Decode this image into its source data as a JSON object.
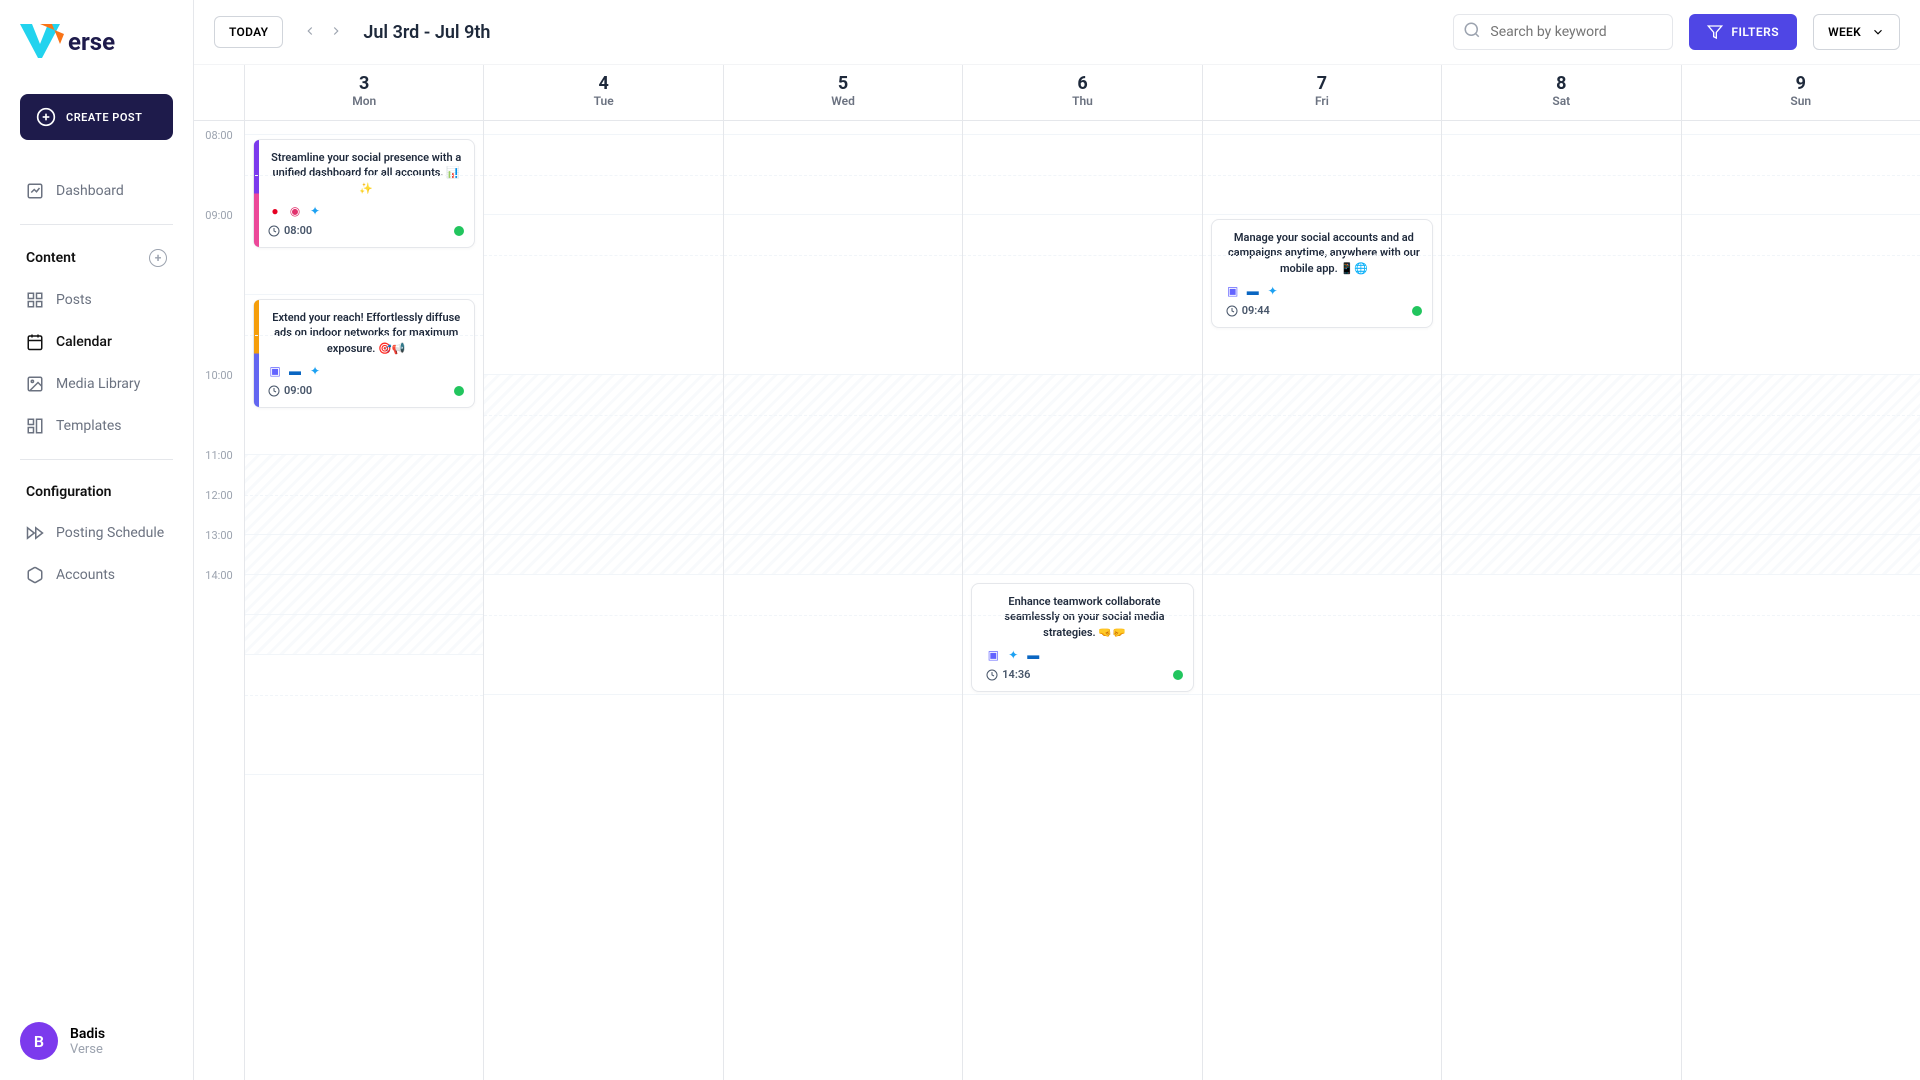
{
  "brand": "Verse",
  "create_label": "CREATE POST",
  "sidebar": {
    "dashboard": "Dashboard",
    "content_header": "Content",
    "posts": "Posts",
    "calendar": "Calendar",
    "media": "Media Library",
    "templates": "Templates",
    "config_header": "Configuration",
    "schedule": "Posting Schedule",
    "accounts": "Accounts"
  },
  "user": {
    "initial": "B",
    "name": "Badis",
    "org": "Verse"
  },
  "topbar": {
    "today": "TODAY",
    "range": "Jul 3rd - Jul 9th",
    "search_placeholder": "Search by keyword",
    "filters": "FILTERS",
    "view": "WEEK"
  },
  "days": [
    {
      "num": "3",
      "name": "Mon"
    },
    {
      "num": "4",
      "name": "Tue"
    },
    {
      "num": "5",
      "name": "Wed"
    },
    {
      "num": "6",
      "name": "Thu"
    },
    {
      "num": "7",
      "name": "Fri"
    },
    {
      "num": "8",
      "name": "Sat"
    },
    {
      "num": "9",
      "name": "Sun"
    }
  ],
  "hours": [
    "08:00",
    "09:00",
    "10:00",
    "11:00",
    "12:00",
    "13:00",
    "14:00"
  ],
  "events": {
    "e1": {
      "text": "Streamline your social presence with a unified dashboard for all accounts. 📊✨",
      "time": "08:00"
    },
    "e2": {
      "text": "Extend your reach! Effortlessly diffuse ads on indoor networks for maximum exposure. 🎯📢",
      "time": "09:00"
    },
    "e3": {
      "text": "Manage your social accounts and ad campaigns anytime, anywhere with our mobile app. 📱🌐",
      "time": "09:44"
    },
    "e4": {
      "text": "Enhance teamwork collaborate seamlessly on your social media strategies. 🤜🤛",
      "time": "14:36"
    }
  }
}
